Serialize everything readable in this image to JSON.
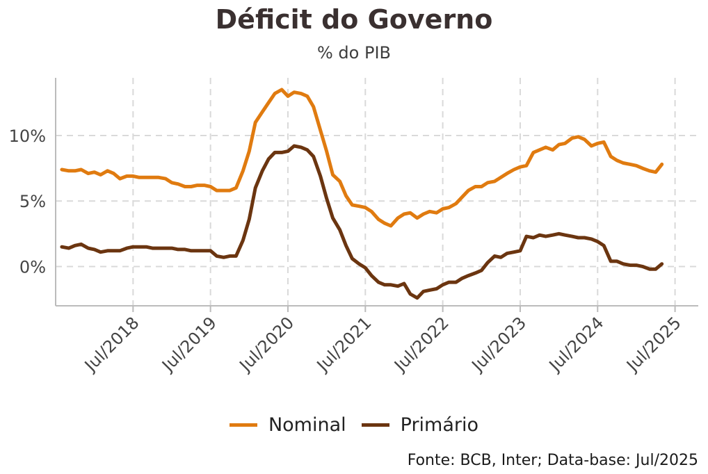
{
  "title": "Déficit do Governo",
  "subtitle": "% do PIB",
  "source": "Fonte: BCB, Inter; Data-base: Jul/2025",
  "colors": {
    "nominal": "#e07b10",
    "primario": "#6b3510",
    "grid": "#d9d9d9",
    "axis": "#bbbbbb"
  },
  "chart_data": {
    "type": "line",
    "title": "Déficit do Governo",
    "subtitle": "% do PIB",
    "xlabel": "",
    "ylabel": "",
    "xlim": [
      2017.5,
      2025.8
    ],
    "ylim": [
      -3,
      14.4
    ],
    "grid": true,
    "legend": "bottom",
    "x_ticks": [
      {
        "label": "Jul/2018",
        "value": 2018.5
      },
      {
        "label": "Jul/2019",
        "value": 2019.5
      },
      {
        "label": "Jul/2020",
        "value": 2020.5
      },
      {
        "label": "Jul/2021",
        "value": 2021.5
      },
      {
        "label": "Jul/2022",
        "value": 2022.5
      },
      {
        "label": "Jul/2023",
        "value": 2023.5
      },
      {
        "label": "Jul/2024",
        "value": 2024.5
      },
      {
        "label": "Jul/2025",
        "value": 2025.5
      }
    ],
    "y_ticks": [
      {
        "label": "0%",
        "value": 0
      },
      {
        "label": "5%",
        "value": 5
      },
      {
        "label": "10%",
        "value": 10
      }
    ],
    "series": [
      {
        "name": "Nominal",
        "color": "#e07b10",
        "points": [
          [
            2017.58,
            7.4
          ],
          [
            2017.67,
            7.3
          ],
          [
            2017.75,
            7.3
          ],
          [
            2017.83,
            7.4
          ],
          [
            2017.92,
            7.1
          ],
          [
            2018.0,
            7.2
          ],
          [
            2018.08,
            7.0
          ],
          [
            2018.17,
            7.3
          ],
          [
            2018.25,
            7.1
          ],
          [
            2018.33,
            6.7
          ],
          [
            2018.42,
            6.9
          ],
          [
            2018.5,
            6.9
          ],
          [
            2018.58,
            6.8
          ],
          [
            2018.67,
            6.8
          ],
          [
            2018.75,
            6.8
          ],
          [
            2018.83,
            6.8
          ],
          [
            2018.92,
            6.7
          ],
          [
            2019.0,
            6.4
          ],
          [
            2019.08,
            6.3
          ],
          [
            2019.17,
            6.1
          ],
          [
            2019.25,
            6.1
          ],
          [
            2019.33,
            6.2
          ],
          [
            2019.42,
            6.2
          ],
          [
            2019.5,
            6.1
          ],
          [
            2019.58,
            5.8
          ],
          [
            2019.67,
            5.8
          ],
          [
            2019.75,
            5.8
          ],
          [
            2019.83,
            6.0
          ],
          [
            2019.92,
            7.3
          ],
          [
            2020.0,
            8.8
          ],
          [
            2020.08,
            11.0
          ],
          [
            2020.17,
            11.8
          ],
          [
            2020.25,
            12.5
          ],
          [
            2020.33,
            13.2
          ],
          [
            2020.42,
            13.5
          ],
          [
            2020.5,
            13.0
          ],
          [
            2020.58,
            13.3
          ],
          [
            2020.67,
            13.2
          ],
          [
            2020.75,
            13.0
          ],
          [
            2020.83,
            12.2
          ],
          [
            2020.92,
            10.4
          ],
          [
            2021.0,
            8.8
          ],
          [
            2021.08,
            7.0
          ],
          [
            2021.17,
            6.5
          ],
          [
            2021.25,
            5.4
          ],
          [
            2021.33,
            4.7
          ],
          [
            2021.42,
            4.6
          ],
          [
            2021.5,
            4.5
          ],
          [
            2021.58,
            4.2
          ],
          [
            2021.67,
            3.6
          ],
          [
            2021.75,
            3.3
          ],
          [
            2021.83,
            3.1
          ],
          [
            2021.92,
            3.7
          ],
          [
            2022.0,
            4.0
          ],
          [
            2022.08,
            4.1
          ],
          [
            2022.17,
            3.7
          ],
          [
            2022.25,
            4.0
          ],
          [
            2022.33,
            4.2
          ],
          [
            2022.42,
            4.1
          ],
          [
            2022.5,
            4.4
          ],
          [
            2022.58,
            4.5
          ],
          [
            2022.67,
            4.8
          ],
          [
            2022.75,
            5.3
          ],
          [
            2022.83,
            5.8
          ],
          [
            2022.92,
            6.1
          ],
          [
            2023.0,
            6.1
          ],
          [
            2023.08,
            6.4
          ],
          [
            2023.17,
            6.5
          ],
          [
            2023.25,
            6.8
          ],
          [
            2023.33,
            7.1
          ],
          [
            2023.42,
            7.4
          ],
          [
            2023.5,
            7.6
          ],
          [
            2023.58,
            7.7
          ],
          [
            2023.67,
            8.7
          ],
          [
            2023.75,
            8.9
          ],
          [
            2023.83,
            9.1
          ],
          [
            2023.92,
            8.9
          ],
          [
            2024.0,
            9.3
          ],
          [
            2024.08,
            9.4
          ],
          [
            2024.17,
            9.8
          ],
          [
            2024.25,
            9.9
          ],
          [
            2024.33,
            9.7
          ],
          [
            2024.42,
            9.2
          ],
          [
            2024.5,
            9.4
          ],
          [
            2024.58,
            9.5
          ],
          [
            2024.67,
            8.4
          ],
          [
            2024.75,
            8.1
          ],
          [
            2024.83,
            7.9
          ],
          [
            2024.92,
            7.8
          ],
          [
            2025.0,
            7.7
          ],
          [
            2025.08,
            7.5
          ],
          [
            2025.17,
            7.3
          ],
          [
            2025.25,
            7.2
          ],
          [
            2025.33,
            7.8
          ]
        ]
      },
      {
        "name": "Primário",
        "color": "#6b3510",
        "points": [
          [
            2017.58,
            1.5
          ],
          [
            2017.67,
            1.4
          ],
          [
            2017.75,
            1.6
          ],
          [
            2017.83,
            1.7
          ],
          [
            2017.92,
            1.4
          ],
          [
            2018.0,
            1.3
          ],
          [
            2018.08,
            1.1
          ],
          [
            2018.17,
            1.2
          ],
          [
            2018.25,
            1.2
          ],
          [
            2018.33,
            1.2
          ],
          [
            2018.42,
            1.4
          ],
          [
            2018.5,
            1.5
          ],
          [
            2018.58,
            1.5
          ],
          [
            2018.67,
            1.5
          ],
          [
            2018.75,
            1.4
          ],
          [
            2018.83,
            1.4
          ],
          [
            2018.92,
            1.4
          ],
          [
            2019.0,
            1.4
          ],
          [
            2019.08,
            1.3
          ],
          [
            2019.17,
            1.3
          ],
          [
            2019.25,
            1.2
          ],
          [
            2019.33,
            1.2
          ],
          [
            2019.42,
            1.2
          ],
          [
            2019.5,
            1.2
          ],
          [
            2019.58,
            0.8
          ],
          [
            2019.67,
            0.7
          ],
          [
            2019.75,
            0.8
          ],
          [
            2019.83,
            0.8
          ],
          [
            2019.92,
            2.0
          ],
          [
            2020.0,
            3.6
          ],
          [
            2020.08,
            6.0
          ],
          [
            2020.17,
            7.3
          ],
          [
            2020.25,
            8.2
          ],
          [
            2020.33,
            8.7
          ],
          [
            2020.42,
            8.7
          ],
          [
            2020.5,
            8.8
          ],
          [
            2020.58,
            9.2
          ],
          [
            2020.67,
            9.1
          ],
          [
            2020.75,
            8.9
          ],
          [
            2020.83,
            8.4
          ],
          [
            2020.92,
            6.9
          ],
          [
            2021.0,
            5.2
          ],
          [
            2021.08,
            3.7
          ],
          [
            2021.17,
            2.8
          ],
          [
            2021.25,
            1.6
          ],
          [
            2021.33,
            0.6
          ],
          [
            2021.42,
            0.2
          ],
          [
            2021.5,
            -0.1
          ],
          [
            2021.58,
            -0.7
          ],
          [
            2021.67,
            -1.2
          ],
          [
            2021.75,
            -1.4
          ],
          [
            2021.83,
            -1.4
          ],
          [
            2021.92,
            -1.5
          ],
          [
            2022.0,
            -1.3
          ],
          [
            2022.08,
            -2.1
          ],
          [
            2022.17,
            -2.4
          ],
          [
            2022.25,
            -1.9
          ],
          [
            2022.33,
            -1.8
          ],
          [
            2022.42,
            -1.7
          ],
          [
            2022.5,
            -1.4
          ],
          [
            2022.58,
            -1.2
          ],
          [
            2022.67,
            -1.2
          ],
          [
            2022.75,
            -0.9
          ],
          [
            2022.83,
            -0.7
          ],
          [
            2022.92,
            -0.5
          ],
          [
            2023.0,
            -0.3
          ],
          [
            2023.08,
            0.3
          ],
          [
            2023.17,
            0.8
          ],
          [
            2023.25,
            0.7
          ],
          [
            2023.33,
            1.0
          ],
          [
            2023.42,
            1.1
          ],
          [
            2023.5,
            1.2
          ],
          [
            2023.58,
            2.3
          ],
          [
            2023.67,
            2.2
          ],
          [
            2023.75,
            2.4
          ],
          [
            2023.83,
            2.3
          ],
          [
            2023.92,
            2.4
          ],
          [
            2024.0,
            2.5
          ],
          [
            2024.08,
            2.4
          ],
          [
            2024.17,
            2.3
          ],
          [
            2024.25,
            2.2
          ],
          [
            2024.33,
            2.2
          ],
          [
            2024.42,
            2.1
          ],
          [
            2024.5,
            1.9
          ],
          [
            2024.58,
            1.6
          ],
          [
            2024.67,
            0.4
          ],
          [
            2024.75,
            0.4
          ],
          [
            2024.83,
            0.2
          ],
          [
            2024.92,
            0.1
          ],
          [
            2025.0,
            0.1
          ],
          [
            2025.08,
            0.0
          ],
          [
            2025.17,
            -0.2
          ],
          [
            2025.25,
            -0.2
          ],
          [
            2025.33,
            0.2
          ]
        ]
      }
    ]
  }
}
